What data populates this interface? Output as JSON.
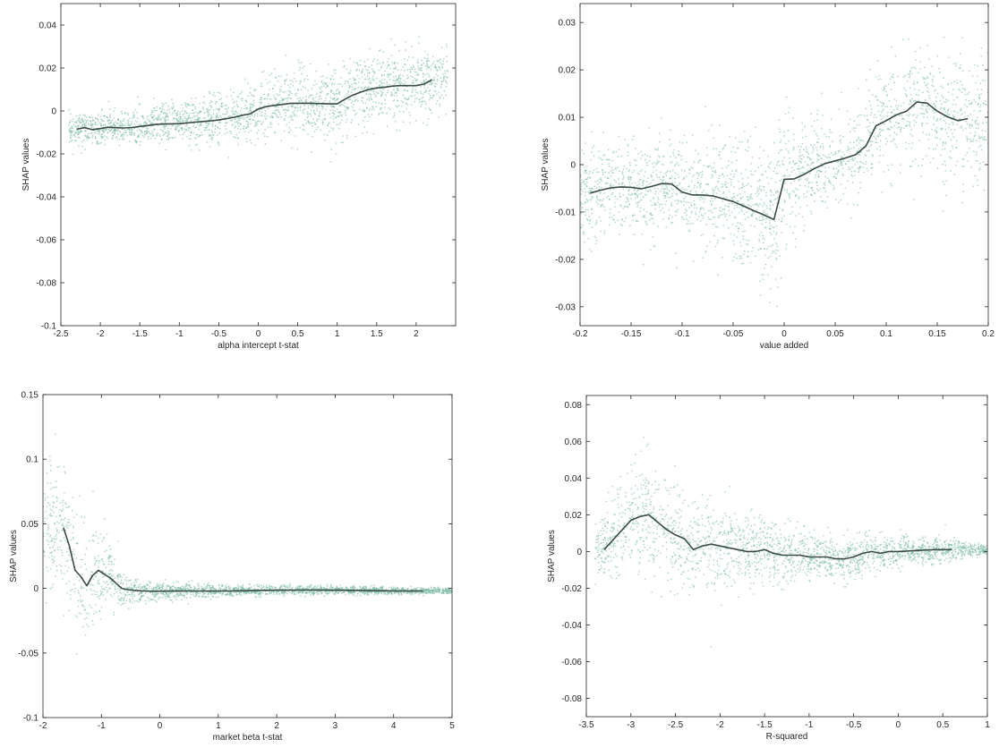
{
  "colors": {
    "scatter": "#78b8a4",
    "trend_line": "#3a4a44",
    "axes": "#262626",
    "background": "#ffffff"
  },
  "chart_data": [
    {
      "type": "scatter",
      "xlabel": "alpha intercept t-stat",
      "ylabel": "SHAP values",
      "xlim": [
        -2.5,
        2.5
      ],
      "ylim": [
        -0.1,
        0.05
      ],
      "xticks": [
        -2.5,
        -2,
        -1.5,
        -1,
        -0.5,
        0,
        0.5,
        1,
        1.5,
        2
      ],
      "xtick_labels": [
        "-2.5",
        "-2",
        "-1.5",
        "-1",
        "-0.5",
        "0",
        "0.5",
        "1",
        "1.5",
        "2"
      ],
      "yticks": [
        -0.1,
        -0.08,
        -0.06,
        -0.04,
        -0.02,
        0,
        0.02,
        0.04
      ],
      "ytick_labels": [
        "-0.1",
        "-0.08",
        "-0.06",
        "-0.04",
        "-0.02",
        "0",
        "0.02",
        "0.04"
      ],
      "grid": false,
      "series": [
        {
          "kind": "line",
          "x": [
            -2.3,
            -2.2,
            -2.1,
            -2.0,
            -1.9,
            -1.8,
            -1.7,
            -1.6,
            -1.5,
            -1.4,
            -1.3,
            -1.2,
            -1.1,
            -1.0,
            -0.9,
            -0.8,
            -0.7,
            -0.6,
            -0.5,
            -0.4,
            -0.3,
            -0.2,
            -0.1,
            0.0,
            0.1,
            0.2,
            0.3,
            0.4,
            0.5,
            0.6,
            0.7,
            0.8,
            0.9,
            1.0,
            1.1,
            1.2,
            1.3,
            1.4,
            1.5,
            1.6,
            1.7,
            1.8,
            1.9,
            2.0,
            2.1,
            2.2
          ],
          "y": [
            -0.0085,
            -0.0078,
            -0.0087,
            -0.0082,
            -0.0076,
            -0.0078,
            -0.0079,
            -0.0077,
            -0.0072,
            -0.0068,
            -0.0063,
            -0.0061,
            -0.006,
            -0.0059,
            -0.0056,
            -0.0052,
            -0.0049,
            -0.0046,
            -0.0042,
            -0.0036,
            -0.0029,
            -0.002,
            -0.0013,
            0.0009,
            0.002,
            0.0026,
            0.003,
            0.0035,
            0.0036,
            0.0036,
            0.0035,
            0.0034,
            0.0033,
            0.0033,
            0.0055,
            0.0074,
            0.0088,
            0.01,
            0.0107,
            0.011,
            0.0116,
            0.0118,
            0.0118,
            0.0118,
            0.0125,
            0.0145
          ]
        }
      ],
      "scatter_cloud": {
        "x_range": [
          -2.4,
          2.4
        ],
        "spread": [
          [
            -2.4,
            0.006
          ],
          [
            -1.5,
            0.008
          ],
          [
            0,
            0.012
          ],
          [
            1,
            0.015
          ],
          [
            2.2,
            0.014
          ]
        ]
      }
    },
    {
      "type": "scatter",
      "xlabel": "value added",
      "ylabel": "SHAP values",
      "xlim": [
        -0.2,
        0.2
      ],
      "ylim": [
        -0.034,
        0.034
      ],
      "xticks": [
        -0.2,
        -0.15,
        -0.1,
        -0.05,
        0,
        0.05,
        0.1,
        0.15,
        0.2
      ],
      "xtick_labels": [
        "-0.2",
        "-0.15",
        "-0.1",
        "-0.05",
        "0",
        "0.05",
        "0.1",
        "0.15",
        "0.2"
      ],
      "yticks": [
        -0.03,
        -0.02,
        -0.01,
        0,
        0.01,
        0.02,
        0.03
      ],
      "ytick_labels": [
        "-0.03",
        "-0.02",
        "-0.01",
        "0",
        "0.01",
        "0.02",
        "0.03"
      ],
      "grid": false,
      "series": [
        {
          "kind": "line",
          "x": [
            -0.19,
            -0.18,
            -0.17,
            -0.16,
            -0.15,
            -0.14,
            -0.13,
            -0.12,
            -0.11,
            -0.1,
            -0.09,
            -0.08,
            -0.07,
            -0.06,
            -0.05,
            -0.04,
            -0.03,
            -0.02,
            -0.01,
            0.0,
            0.01,
            0.02,
            0.03,
            0.04,
            0.05,
            0.06,
            0.07,
            0.08,
            0.09,
            0.1,
            0.11,
            0.12,
            0.13,
            0.14,
            0.15,
            0.16,
            0.17,
            0.18
          ],
          "y": [
            -0.006,
            -0.0054,
            -0.0049,
            -0.0047,
            -0.0048,
            -0.0051,
            -0.0046,
            -0.004,
            -0.0041,
            -0.0058,
            -0.0064,
            -0.0064,
            -0.0066,
            -0.0072,
            -0.0078,
            -0.0087,
            -0.0097,
            -0.0106,
            -0.0116,
            -0.0031,
            -0.003,
            -0.002,
            -0.0008,
            0.0002,
            0.0008,
            0.0014,
            0.0021,
            0.0039,
            0.0082,
            0.0093,
            0.0105,
            0.0113,
            0.0132,
            0.013,
            0.0113,
            0.0101,
            0.0093,
            0.0097
          ]
        }
      ],
      "scatter_cloud": {
        "x_range": [
          -0.2,
          0.2
        ],
        "spread": [
          [
            -0.2,
            0.01
          ],
          [
            -0.1,
            0.009
          ],
          [
            -0.01,
            0.014
          ],
          [
            0.05,
            0.006
          ],
          [
            0.1,
            0.012
          ],
          [
            0.2,
            0.012
          ]
        ]
      }
    },
    {
      "type": "scatter",
      "xlabel": "market beta t-stat",
      "ylabel": "SHAP values",
      "xlim": [
        -2,
        5
      ],
      "ylim": [
        -0.1,
        0.15
      ],
      "xticks": [
        -2,
        -1,
        0,
        1,
        2,
        3,
        4,
        5
      ],
      "xtick_labels": [
        "-2",
        "-1",
        "0",
        "1",
        "2",
        "3",
        "4",
        "5"
      ],
      "yticks": [
        -0.1,
        -0.05,
        0,
        0.05,
        0.1,
        0.15
      ],
      "ytick_labels": [
        "-0.1",
        "-0.05",
        "0",
        "0.05",
        "0.1",
        "0.15"
      ],
      "grid": false,
      "series": [
        {
          "kind": "line",
          "x": [
            -1.65,
            -1.55,
            -1.45,
            -1.35,
            -1.25,
            -1.15,
            -1.05,
            -0.95,
            -0.85,
            -0.75,
            -0.65,
            -0.55,
            -0.45,
            -0.3,
            -0.1,
            0.2,
            0.5,
            0.8,
            1.2,
            1.6,
            2.0,
            2.5,
            3.0,
            3.5,
            4.0,
            4.5
          ],
          "y": [
            0.047,
            0.033,
            0.014,
            0.009,
            0.002,
            0.01,
            0.014,
            0.011,
            0.008,
            0.004,
            0.0,
            -0.001,
            -0.0015,
            -0.002,
            -0.0022,
            -0.0021,
            -0.002,
            -0.0021,
            -0.002,
            -0.0017,
            -0.0014,
            -0.0013,
            -0.0014,
            -0.0016,
            -0.002,
            -0.002
          ]
        }
      ],
      "scatter_cloud": {
        "x_range": [
          -2,
          5
        ],
        "spread": [
          [
            -2,
            0.04
          ],
          [
            -1.5,
            0.05
          ],
          [
            -1,
            0.03
          ],
          [
            -0.5,
            0.008
          ],
          [
            1,
            0.004
          ],
          [
            3,
            0.003
          ],
          [
            5,
            0.002
          ]
        ]
      }
    },
    {
      "type": "scatter",
      "xlabel": "R-squared",
      "ylabel": "SHAP values",
      "xlim": [
        -3.5,
        1
      ],
      "ylim": [
        -0.09,
        0.085
      ],
      "xticks": [
        -3.5,
        -3,
        -2.5,
        -2,
        -1.5,
        -1,
        -0.5,
        0,
        0.5,
        1
      ],
      "xtick_labels": [
        "-3.5",
        "-3",
        "-2.5",
        "-2",
        "-1.5",
        "-1",
        "-0.5",
        "0",
        "0.5",
        "1"
      ],
      "yticks": [
        -0.08,
        -0.06,
        -0.04,
        -0.02,
        0,
        0.02,
        0.04,
        0.06,
        0.08
      ],
      "ytick_labels": [
        "-0.08",
        "-0.06",
        "-0.04",
        "-0.02",
        "0",
        "0.02",
        "0.04",
        "0.06",
        "0.08"
      ],
      "grid": false,
      "series": [
        {
          "kind": "line",
          "x": [
            -3.3,
            -3.15,
            -3.0,
            -2.9,
            -2.8,
            -2.7,
            -2.6,
            -2.5,
            -2.4,
            -2.3,
            -2.2,
            -2.1,
            -2.0,
            -1.9,
            -1.8,
            -1.7,
            -1.6,
            -1.5,
            -1.4,
            -1.3,
            -1.2,
            -1.1,
            -1.0,
            -0.9,
            -0.8,
            -0.7,
            -0.6,
            -0.5,
            -0.4,
            -0.3,
            -0.2,
            -0.1,
            0.0,
            0.2,
            0.4,
            0.6
          ],
          "y": [
            0.001,
            0.009,
            0.017,
            0.019,
            0.02,
            0.016,
            0.012,
            0.009,
            0.007,
            0.001,
            0.003,
            0.004,
            0.003,
            0.002,
            0.001,
            0.0,
            0.0,
            0.001,
            -0.001,
            -0.002,
            -0.002,
            -0.002,
            -0.003,
            -0.003,
            -0.003,
            -0.004,
            -0.004,
            -0.003,
            -0.001,
            0.0,
            -0.001,
            0.0,
            0.0,
            0.0005,
            0.001,
            0.001
          ]
        }
      ],
      "scatter_cloud": {
        "x_range": [
          -3.4,
          1
        ],
        "spread": [
          [
            -3.4,
            0.015
          ],
          [
            -2.8,
            0.03
          ],
          [
            -2,
            0.02
          ],
          [
            -1,
            0.012
          ],
          [
            -0.2,
            0.008
          ],
          [
            0.5,
            0.006
          ],
          [
            1,
            0.002
          ]
        ]
      }
    }
  ]
}
